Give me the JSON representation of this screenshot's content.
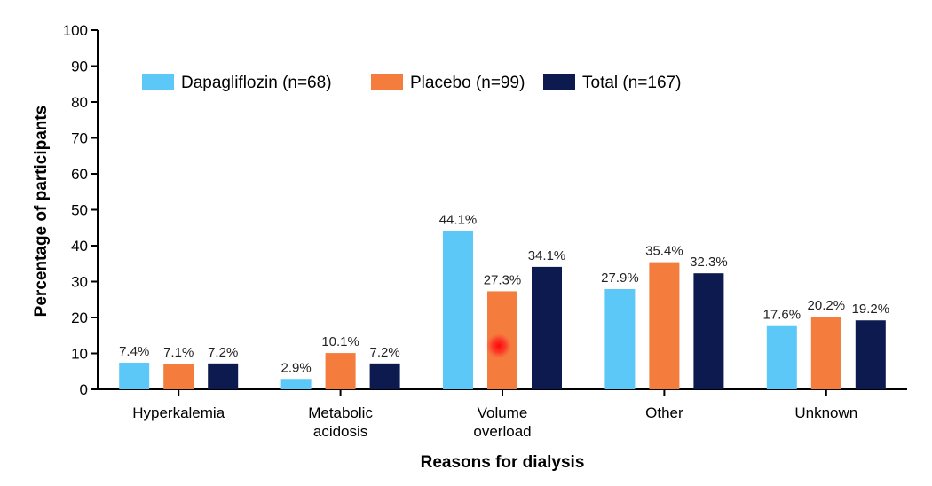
{
  "chart_data": {
    "type": "bar",
    "title": "",
    "xlabel": "Reasons for dialysis",
    "ylabel": "Percentage of participants",
    "ylim": [
      0,
      100
    ],
    "yticks": [
      "0",
      "10",
      "20",
      "30",
      "40",
      "50",
      "60",
      "70",
      "80",
      "90",
      "100"
    ],
    "categories": [
      [
        "Hyperkalemia"
      ],
      [
        "Metabolic",
        "acidosis"
      ],
      [
        "Volume",
        "overload"
      ],
      [
        "Other"
      ],
      [
        "Unknown"
      ]
    ],
    "series": [
      {
        "name": "Dapagliflozin (n=68)",
        "color": "#5bc8f7",
        "values": [
          7.4,
          2.9,
          44.1,
          27.9,
          17.6
        ],
        "labels": [
          "7.4%",
          "2.9%",
          "44.1%",
          "27.9%",
          "17.6%"
        ]
      },
      {
        "name": "Placebo (n=99)",
        "color": "#f47c3c",
        "values": [
          7.1,
          10.1,
          27.3,
          35.4,
          20.2
        ],
        "labels": [
          "7.1%",
          "10.1%",
          "27.3%",
          "35.4%",
          "20.2%"
        ]
      },
      {
        "name": "Total (n=167)",
        "color": "#0d1a4f",
        "values": [
          7.2,
          7.2,
          34.1,
          32.3,
          19.2
        ],
        "labels": [
          "7.2%",
          "7.2%",
          "34.1%",
          "32.3%",
          "19.2%"
        ]
      }
    ],
    "legend_position": "top-left",
    "grid": false
  }
}
